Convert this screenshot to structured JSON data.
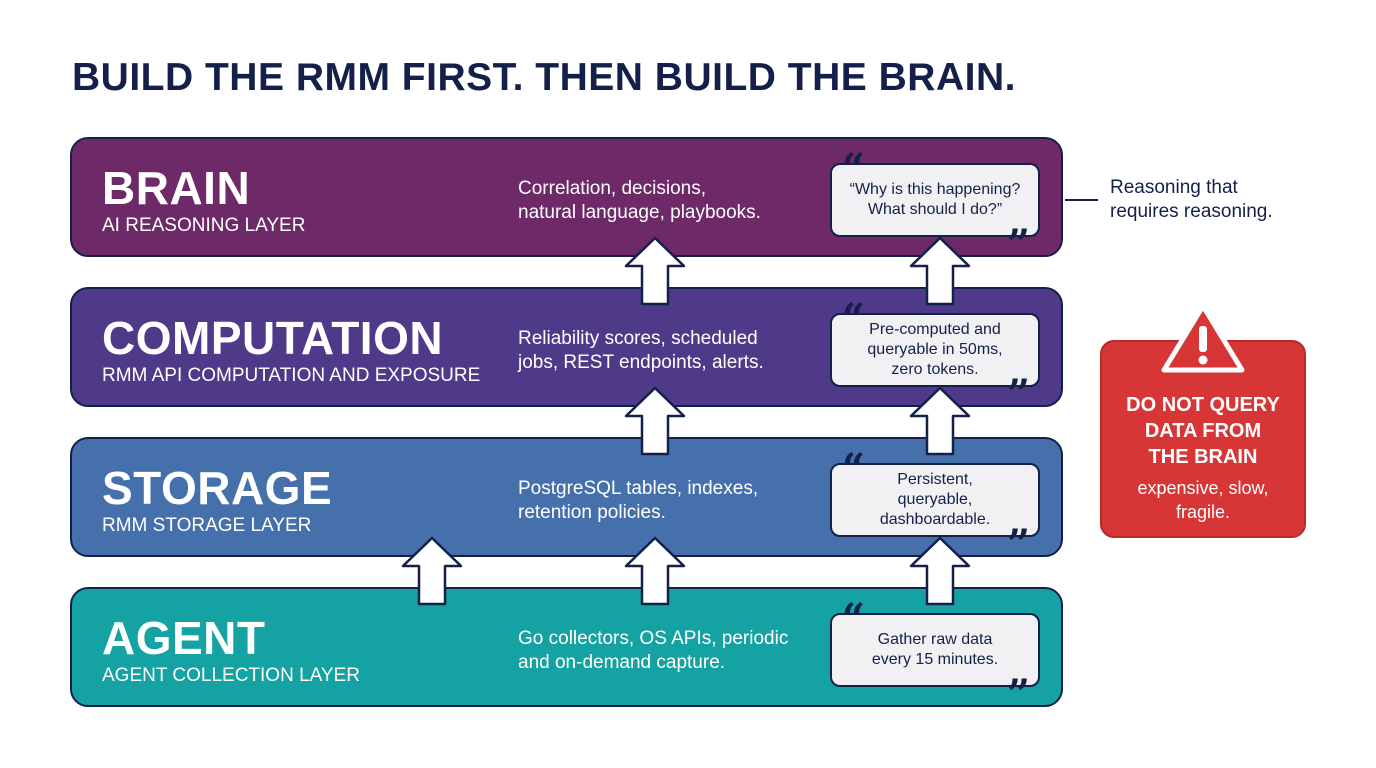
{
  "title": "BUILD THE RMM FIRST. THEN BUILD THE BRAIN.",
  "layers": [
    {
      "name": "BRAIN",
      "subtitle": "AI REASONING LAYER",
      "description_1": "Correlation, decisions,",
      "description_2": "natural language, playbooks.",
      "quote": "“Why is this happening? What should I do?”",
      "color": "#6e2a68"
    },
    {
      "name": "COMPUTATION",
      "subtitle": "RMM API COMPUTATION AND EXPOSURE",
      "description_1": "Reliability scores, scheduled",
      "description_2": "jobs, REST endpoints, alerts.",
      "quote": "Pre-computed and queryable in 50ms, zero tokens.",
      "color": "#4f3a8a"
    },
    {
      "name": "STORAGE",
      "subtitle": "RMM STORAGE LAYER",
      "description_1": "PostgreSQL tables, indexes,",
      "description_2": "retention policies.",
      "quote": "Persistent, queryable, dashboardable.",
      "color": "#4570ac"
    },
    {
      "name": "AGENT",
      "subtitle": "AGENT COLLECTION LAYER",
      "description_1": "Go collectors, OS APIs, periodic",
      "description_2": "and on-demand capture.",
      "quote": "Gather raw data every 15 minutes.",
      "color": "#14a2a2"
    }
  ],
  "side_note": {
    "line_1": "Reasoning that",
    "line_2": "requires reasoning."
  },
  "warning": {
    "heading_1": "DO NOT QUERY",
    "heading_2": "DATA FROM",
    "heading_3": "THE BRAIN",
    "sub_1": "expensive, slow,",
    "sub_2": "fragile.",
    "icon": "warning-triangle-icon",
    "color": "#d63636"
  },
  "colors": {
    "outline": "#14204a",
    "quote_bg": "#f1f1f3"
  }
}
